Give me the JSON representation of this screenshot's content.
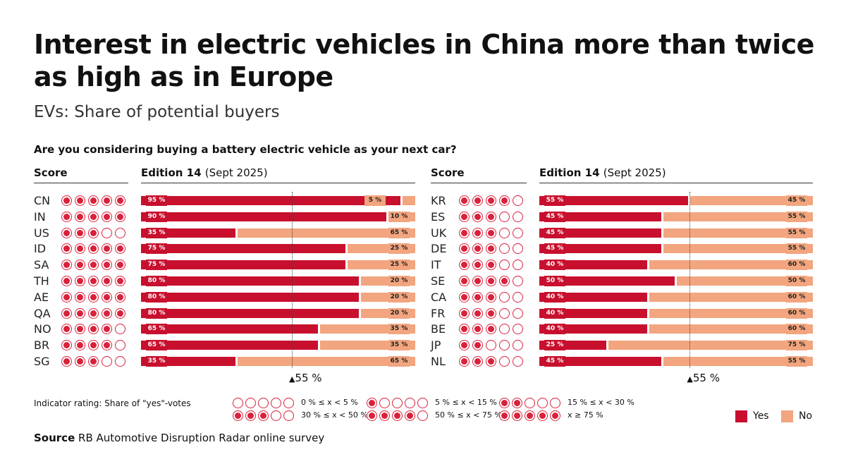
{
  "title": "Interest in electric vehicles in China more than twice as high as in Europe",
  "subtitle": "EVs: Share of potential buyers",
  "question": "Are you considering buying a battery electric vehicle as your next car?",
  "score_header": "Score",
  "edition_header": "Edition 14",
  "edition_date": "(Sept 2025)",
  "reference_label": "55 %",
  "legend_title": "Indicator rating: Share of \"yes\"-votes",
  "rating_legend": [
    {
      "dots": 0,
      "label": "0 % ≤ x < 5 %"
    },
    {
      "dots": 1,
      "label": "5 % ≤ x < 15 %"
    },
    {
      "dots": 2,
      "label": "15 % ≤ x < 30 %"
    },
    {
      "dots": 3,
      "label": "30 % ≤ x < 50 %"
    },
    {
      "dots": 4,
      "label": "50 % ≤ x < 75 %"
    },
    {
      "dots": 5,
      "label": "x ≥ 75 %"
    }
  ],
  "series_legend": {
    "yes": "Yes",
    "no": "No"
  },
  "source_bold": "Source",
  "source_text": "RB Automotive Disruption Radar online survey",
  "chart_data": [
    {
      "type": "bar",
      "stacked": true,
      "orientation": "horizontal",
      "categories": [
        "CN",
        "IN",
        "US",
        "ID",
        "SA",
        "TH",
        "AE",
        "QA",
        "NO",
        "BR",
        "SG"
      ],
      "series": [
        {
          "name": "Yes",
          "color": "#c8102e",
          "values": [
            95,
            90,
            35,
            75,
            75,
            80,
            80,
            80,
            65,
            65,
            35
          ]
        },
        {
          "name": "No",
          "color": "#f2a57e",
          "values": [
            5,
            10,
            65,
            25,
            25,
            20,
            20,
            20,
            35,
            35,
            65
          ]
        }
      ],
      "scores": [
        5,
        5,
        3,
        5,
        5,
        5,
        5,
        5,
        4,
        4,
        3
      ],
      "reference": 55,
      "xlim": [
        0,
        100
      ]
    },
    {
      "type": "bar",
      "stacked": true,
      "orientation": "horizontal",
      "categories": [
        "KR",
        "ES",
        "UK",
        "DE",
        "IT",
        "SE",
        "CA",
        "FR",
        "BE",
        "JP",
        "NL"
      ],
      "series": [
        {
          "name": "Yes",
          "color": "#c8102e",
          "values": [
            55,
            45,
            45,
            45,
            40,
            50,
            40,
            40,
            40,
            25,
            45
          ]
        },
        {
          "name": "No",
          "color": "#f2a57e",
          "values": [
            45,
            55,
            55,
            55,
            60,
            50,
            60,
            60,
            60,
            75,
            55
          ]
        }
      ],
      "scores": [
        4,
        3,
        3,
        3,
        3,
        4,
        3,
        3,
        3,
        2,
        3
      ],
      "reference": 55,
      "xlim": [
        0,
        100
      ]
    }
  ]
}
